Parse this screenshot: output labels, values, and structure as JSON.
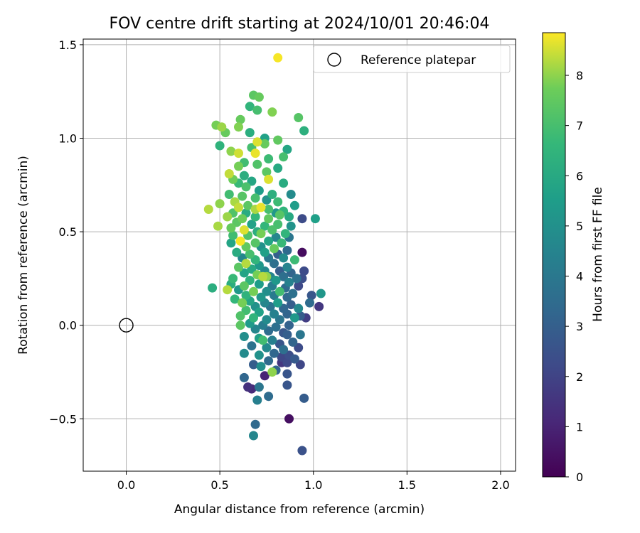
{
  "chart_data": {
    "type": "scatter",
    "title": "FOV centre drift starting at 2024/10/01 20:46:04",
    "xlabel": "Angular distance from reference (arcmin)",
    "ylabel": "Rotation from reference (arcmin)",
    "xlim": [
      -0.23,
      2.08
    ],
    "ylim": [
      -0.78,
      1.53
    ],
    "xticks": [
      0.0,
      0.5,
      1.0,
      1.5,
      2.0
    ],
    "xtick_labels": [
      "0.0",
      "0.5",
      "1.0",
      "1.5",
      "2.0"
    ],
    "yticks": [
      -0.5,
      0.0,
      0.5,
      1.0,
      1.5
    ],
    "ytick_labels": [
      "−0.5",
      "0.0",
      "0.5",
      "1.0",
      "1.5"
    ],
    "grid": true,
    "legend": {
      "position": "top-right",
      "entries": [
        "Reference platepar"
      ]
    },
    "reference_point": {
      "x": 0.0,
      "y": 0.0,
      "marker": "open-circle"
    },
    "colorbar": {
      "label": "Hours from first FF file",
      "range": [
        0,
        8.85
      ],
      "ticks": [
        0,
        1,
        2,
        3,
        4,
        5,
        6,
        7,
        8
      ],
      "colormap": "viridis"
    },
    "points": [
      [
        0.81,
        1.43,
        8.8
      ],
      [
        0.68,
        1.23,
        7.4
      ],
      [
        0.71,
        1.22,
        7.6
      ],
      [
        0.66,
        1.17,
        6.5
      ],
      [
        0.7,
        1.15,
        7.0
      ],
      [
        0.78,
        1.14,
        7.9
      ],
      [
        0.92,
        1.11,
        7.3
      ],
      [
        0.61,
        1.1,
        7.6
      ],
      [
        0.48,
        1.07,
        7.8
      ],
      [
        0.51,
        1.06,
        8.1
      ],
      [
        0.53,
        1.03,
        7.6
      ],
      [
        0.95,
        1.04,
        6.3
      ],
      [
        0.6,
        1.06,
        7.9
      ],
      [
        0.66,
        1.03,
        6.2
      ],
      [
        0.74,
        1.0,
        5.7
      ],
      [
        0.81,
        0.99,
        7.5
      ],
      [
        0.5,
        0.96,
        6.4
      ],
      [
        0.7,
        0.98,
        8.6
      ],
      [
        0.74,
        0.97,
        7.6
      ],
      [
        0.67,
        0.95,
        7.0
      ],
      [
        0.56,
        0.93,
        8.0
      ],
      [
        0.6,
        0.92,
        8.5
      ],
      [
        0.69,
        0.92,
        8.7
      ],
      [
        0.86,
        0.94,
        5.9
      ],
      [
        0.76,
        0.89,
        6.8
      ],
      [
        0.84,
        0.9,
        7.0
      ],
      [
        0.63,
        0.87,
        6.9
      ],
      [
        0.6,
        0.85,
        7.8
      ],
      [
        0.7,
        0.86,
        7.2
      ],
      [
        0.81,
        0.84,
        6.0
      ],
      [
        0.55,
        0.81,
        8.4
      ],
      [
        0.63,
        0.8,
        6.2
      ],
      [
        0.75,
        0.82,
        7.4
      ],
      [
        0.57,
        0.78,
        7.7
      ],
      [
        0.67,
        0.77,
        5.9
      ],
      [
        0.76,
        0.78,
        8.6
      ],
      [
        0.6,
        0.76,
        6.7
      ],
      [
        0.84,
        0.76,
        6.1
      ],
      [
        0.64,
        0.74,
        7.1
      ],
      [
        0.71,
        0.72,
        5.5
      ],
      [
        0.55,
        0.7,
        6.9
      ],
      [
        0.78,
        0.7,
        6.3
      ],
      [
        0.88,
        0.7,
        4.8
      ],
      [
        0.62,
        0.69,
        7.3
      ],
      [
        0.69,
        0.68,
        7.0
      ],
      [
        0.58,
        0.66,
        8.2
      ],
      [
        0.75,
        0.67,
        5.1
      ],
      [
        0.81,
        0.66,
        6.8
      ],
      [
        0.65,
        0.64,
        7.4
      ],
      [
        0.9,
        0.64,
        5.5
      ],
      [
        0.5,
        0.65,
        8.0
      ],
      [
        0.6,
        0.63,
        8.4
      ],
      [
        0.69,
        0.62,
        8.2
      ],
      [
        0.76,
        0.62,
        7.0
      ],
      [
        0.84,
        0.61,
        6.5
      ],
      [
        0.44,
        0.62,
        8.3
      ],
      [
        0.57,
        0.6,
        7.2
      ],
      [
        0.64,
        0.6,
        6.1
      ],
      [
        0.72,
        0.63,
        8.7
      ],
      [
        0.8,
        0.6,
        5.3
      ],
      [
        0.87,
        0.58,
        6.0
      ],
      [
        0.54,
        0.58,
        8.1
      ],
      [
        0.62,
        0.57,
        7.7
      ],
      [
        0.69,
        0.58,
        6.6
      ],
      [
        0.76,
        0.57,
        7.5
      ],
      [
        0.82,
        0.59,
        7.3
      ],
      [
        0.94,
        0.57,
        2.3
      ],
      [
        1.01,
        0.57,
        5.6
      ],
      [
        0.59,
        0.55,
        7.4
      ],
      [
        0.67,
        0.54,
        5.7
      ],
      [
        0.74,
        0.53,
        6.6
      ],
      [
        0.81,
        0.54,
        7.0
      ],
      [
        0.88,
        0.53,
        5.1
      ],
      [
        0.49,
        0.53,
        8.2
      ],
      [
        0.56,
        0.52,
        7.6
      ],
      [
        0.63,
        0.51,
        8.6
      ],
      [
        0.7,
        0.5,
        6.2
      ],
      [
        0.78,
        0.51,
        7.1
      ],
      [
        0.85,
        0.49,
        6.5
      ],
      [
        0.57,
        0.48,
        6.9
      ],
      [
        0.65,
        0.48,
        7.2
      ],
      [
        0.72,
        0.49,
        7.8
      ],
      [
        0.8,
        0.47,
        4.6
      ],
      [
        0.87,
        0.47,
        3.9
      ],
      [
        0.61,
        0.45,
        8.8
      ],
      [
        0.69,
        0.44,
        7.3
      ],
      [
        0.76,
        0.45,
        5.8
      ],
      [
        0.83,
        0.44,
        6.7
      ],
      [
        0.56,
        0.44,
        5.8
      ],
      [
        0.64,
        0.42,
        7.5
      ],
      [
        0.72,
        0.42,
        5.0
      ],
      [
        0.79,
        0.41,
        7.6
      ],
      [
        0.86,
        0.4,
        3.4
      ],
      [
        0.59,
        0.39,
        6.1
      ],
      [
        0.66,
        0.38,
        7.0
      ],
      [
        0.74,
        0.39,
        5.6
      ],
      [
        0.81,
        0.38,
        3.0
      ],
      [
        0.94,
        0.39,
        0.3
      ],
      [
        0.62,
        0.36,
        4.6
      ],
      [
        0.69,
        0.35,
        6.5
      ],
      [
        0.76,
        0.36,
        4.0
      ],
      [
        0.84,
        0.36,
        4.8
      ],
      [
        0.9,
        0.35,
        6.8
      ],
      [
        0.64,
        0.33,
        8.3
      ],
      [
        0.71,
        0.32,
        5.3
      ],
      [
        0.79,
        0.33,
        3.6
      ],
      [
        0.86,
        0.31,
        4.5
      ],
      [
        0.6,
        0.31,
        7.4
      ],
      [
        0.67,
        0.3,
        6.0
      ],
      [
        0.74,
        0.29,
        4.7
      ],
      [
        0.82,
        0.29,
        2.9
      ],
      [
        0.88,
        0.28,
        3.2
      ],
      [
        0.95,
        0.29,
        2.3
      ],
      [
        0.63,
        0.28,
        5.8
      ],
      [
        0.7,
        0.27,
        7.8
      ],
      [
        0.77,
        0.26,
        4.5
      ],
      [
        0.84,
        0.26,
        3.6
      ],
      [
        0.91,
        0.25,
        3.7
      ],
      [
        0.57,
        0.25,
        6.7
      ],
      [
        0.73,
        0.26,
        8.3
      ],
      [
        0.75,
        0.26,
        8.0
      ],
      [
        0.66,
        0.24,
        6.4
      ],
      [
        0.8,
        0.24,
        5.3
      ],
      [
        0.87,
        0.23,
        4.4
      ],
      [
        0.94,
        0.25,
        2.4
      ],
      [
        0.56,
        0.22,
        6.2
      ],
      [
        0.63,
        0.21,
        7.4
      ],
      [
        0.71,
        0.22,
        5.5
      ],
      [
        0.78,
        0.21,
        4.2
      ],
      [
        0.85,
        0.2,
        3.5
      ],
      [
        0.92,
        0.21,
        2.2
      ],
      [
        0.46,
        0.2,
        6.2
      ],
      [
        0.6,
        0.19,
        5.3
      ],
      [
        0.68,
        0.18,
        7.8
      ],
      [
        0.75,
        0.18,
        4.9
      ],
      [
        0.82,
        0.18,
        6.9
      ],
      [
        0.89,
        0.17,
        3.7
      ],
      [
        0.54,
        0.19,
        8.3
      ],
      [
        0.64,
        0.16,
        6.4
      ],
      [
        0.72,
        0.15,
        5.2
      ],
      [
        0.79,
        0.16,
        4.1
      ],
      [
        0.86,
        0.15,
        3.4
      ],
      [
        0.99,
        0.16,
        2.7
      ],
      [
        1.04,
        0.17,
        5.2
      ],
      [
        0.58,
        0.14,
        6.6
      ],
      [
        0.66,
        0.13,
        5.8
      ],
      [
        0.74,
        0.12,
        4.6
      ],
      [
        0.81,
        0.12,
        5.5
      ],
      [
        0.88,
        0.11,
        3.0
      ],
      [
        0.62,
        0.12,
        7.8
      ],
      [
        0.69,
        0.1,
        5.0
      ],
      [
        0.77,
        0.1,
        3.8
      ],
      [
        0.84,
        0.09,
        3.3
      ],
      [
        0.92,
        0.09,
        4.7
      ],
      [
        0.98,
        0.12,
        3.5
      ],
      [
        1.03,
        0.1,
        1.6
      ],
      [
        0.64,
        0.08,
        6.9
      ],
      [
        0.71,
        0.07,
        5.7
      ],
      [
        0.79,
        0.06,
        4.4
      ],
      [
        0.86,
        0.06,
        3.2
      ],
      [
        0.93,
        0.05,
        2.9
      ],
      [
        0.61,
        0.05,
        7.2
      ],
      [
        0.68,
        0.04,
        6.5
      ],
      [
        0.75,
        0.03,
        4.8
      ],
      [
        0.82,
        0.03,
        3.9
      ],
      [
        0.9,
        0.04,
        5.3
      ],
      [
        0.96,
        0.04,
        1.8
      ],
      [
        0.66,
        0.01,
        5.4
      ],
      [
        0.73,
        0.0,
        4.2
      ],
      [
        0.8,
        -0.01,
        3.6
      ],
      [
        0.87,
        0.0,
        3.1
      ],
      [
        0.61,
        0.0,
        7.4
      ],
      [
        0.69,
        -0.02,
        4.6
      ],
      [
        0.76,
        -0.03,
        3.5
      ],
      [
        0.84,
        -0.04,
        2.7
      ],
      [
        0.93,
        -0.05,
        3.9
      ],
      [
        0.63,
        -0.06,
        4.9
      ],
      [
        0.71,
        -0.07,
        5.6
      ],
      [
        0.78,
        -0.08,
        4.3
      ],
      [
        0.86,
        -0.05,
        3.0
      ],
      [
        0.73,
        -0.08,
        6.9
      ],
      [
        0.82,
        -0.1,
        2.6
      ],
      [
        0.89,
        -0.09,
        3.2
      ],
      [
        0.67,
        -0.11,
        3.8
      ],
      [
        0.75,
        -0.12,
        4.7
      ],
      [
        0.84,
        -0.13,
        3.6
      ],
      [
        0.92,
        -0.12,
        2.3
      ],
      [
        0.79,
        -0.15,
        3.3
      ],
      [
        0.87,
        -0.16,
        2.4
      ],
      [
        0.63,
        -0.15,
        4.8
      ],
      [
        0.71,
        -0.16,
        5.0
      ],
      [
        0.83,
        -0.17,
        2.1
      ],
      [
        0.9,
        -0.18,
        2.8
      ],
      [
        0.76,
        -0.19,
        3.4
      ],
      [
        0.86,
        -0.2,
        2.2
      ],
      [
        0.93,
        -0.21,
        2.1
      ],
      [
        0.68,
        -0.21,
        2.9
      ],
      [
        0.72,
        -0.22,
        4.9
      ],
      [
        0.83,
        -0.2,
        1.6
      ],
      [
        0.8,
        -0.24,
        3.2
      ],
      [
        0.86,
        -0.26,
        2.6
      ],
      [
        0.74,
        -0.27,
        1.0
      ],
      [
        0.78,
        -0.25,
        8.0
      ],
      [
        0.63,
        -0.28,
        3.3
      ],
      [
        0.86,
        -0.32,
        2.6
      ],
      [
        0.65,
        -0.33,
        1.4
      ],
      [
        0.67,
        -0.34,
        1.2
      ],
      [
        0.71,
        -0.33,
        3.9
      ],
      [
        0.76,
        -0.38,
        3.5
      ],
      [
        0.7,
        -0.4,
        4.3
      ],
      [
        0.95,
        -0.39,
        2.9
      ],
      [
        0.87,
        -0.5,
        0.4
      ],
      [
        0.69,
        -0.53,
        3.4
      ],
      [
        0.68,
        -0.59,
        4.6
      ],
      [
        0.94,
        -0.67,
        2.5
      ]
    ]
  }
}
